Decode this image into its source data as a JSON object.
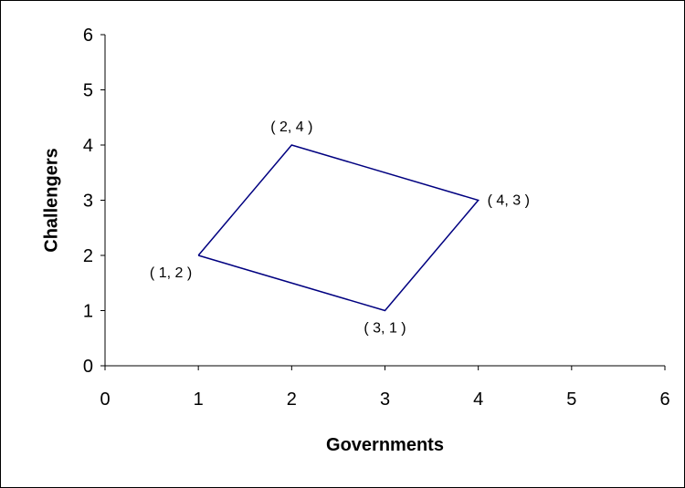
{
  "chart_data": {
    "type": "line",
    "title": "",
    "xlabel": "Governments",
    "ylabel": "Challengers",
    "xlim": [
      0,
      6
    ],
    "ylim": [
      0,
      6
    ],
    "x_ticks": [
      "0",
      "1",
      "2",
      "3",
      "4",
      "5",
      "6"
    ],
    "y_ticks": [
      "0",
      "1",
      "2",
      "3",
      "4",
      "5",
      "6"
    ],
    "grid": false,
    "legend": "none",
    "series": [
      {
        "color": "#000080",
        "points": [
          {
            "x": 1,
            "y": 2,
            "label": "( 1, 2 )"
          },
          {
            "x": 2,
            "y": 4,
            "label": "( 2, 4 )"
          },
          {
            "x": 4,
            "y": 3,
            "label": "( 4, 3 )"
          },
          {
            "x": 3,
            "y": 1,
            "label": "( 3, 1 )"
          },
          {
            "x": 1,
            "y": 2
          }
        ]
      }
    ]
  }
}
